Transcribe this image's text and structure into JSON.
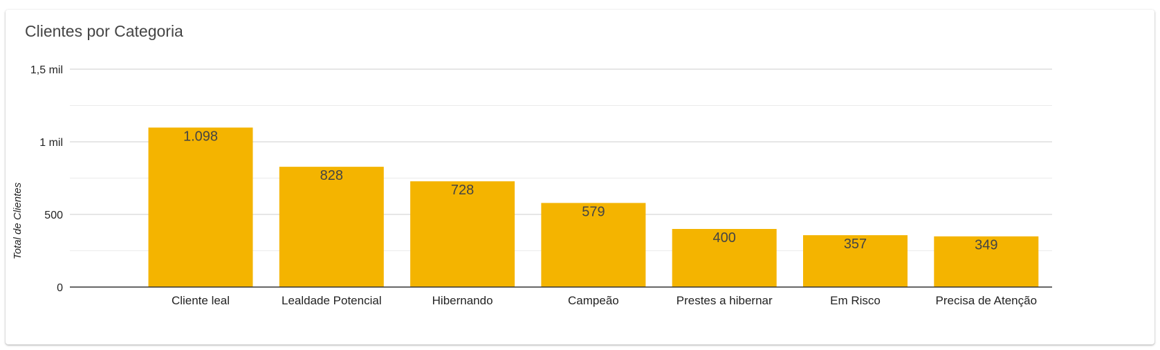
{
  "chart_data": {
    "type": "bar",
    "title": "Clientes por Categoria",
    "xlabel": "",
    "ylabel": "Total de Clientes",
    "categories": [
      "Cliente leal",
      "Lealdade Potencial",
      "Hibernando",
      "Campeão",
      "Prestes a hibernar",
      "Em Risco",
      "Precisa de Atenção"
    ],
    "values": [
      1098,
      828,
      728,
      579,
      400,
      357,
      349
    ],
    "data_labels": [
      "1.098",
      "828",
      "728",
      "579",
      "400",
      "357",
      "349"
    ],
    "ylim": [
      0,
      1500
    ],
    "y_ticks": [
      {
        "value": 0,
        "label": "0"
      },
      {
        "value": 500,
        "label": "500"
      },
      {
        "value": 1000,
        "label": "1 mil"
      },
      {
        "value": 1500,
        "label": "1,5 mil"
      }
    ],
    "minor_gridlines": [
      250,
      750,
      1250
    ],
    "grid": true,
    "legend": "none",
    "bar_color": "#f4b400"
  }
}
